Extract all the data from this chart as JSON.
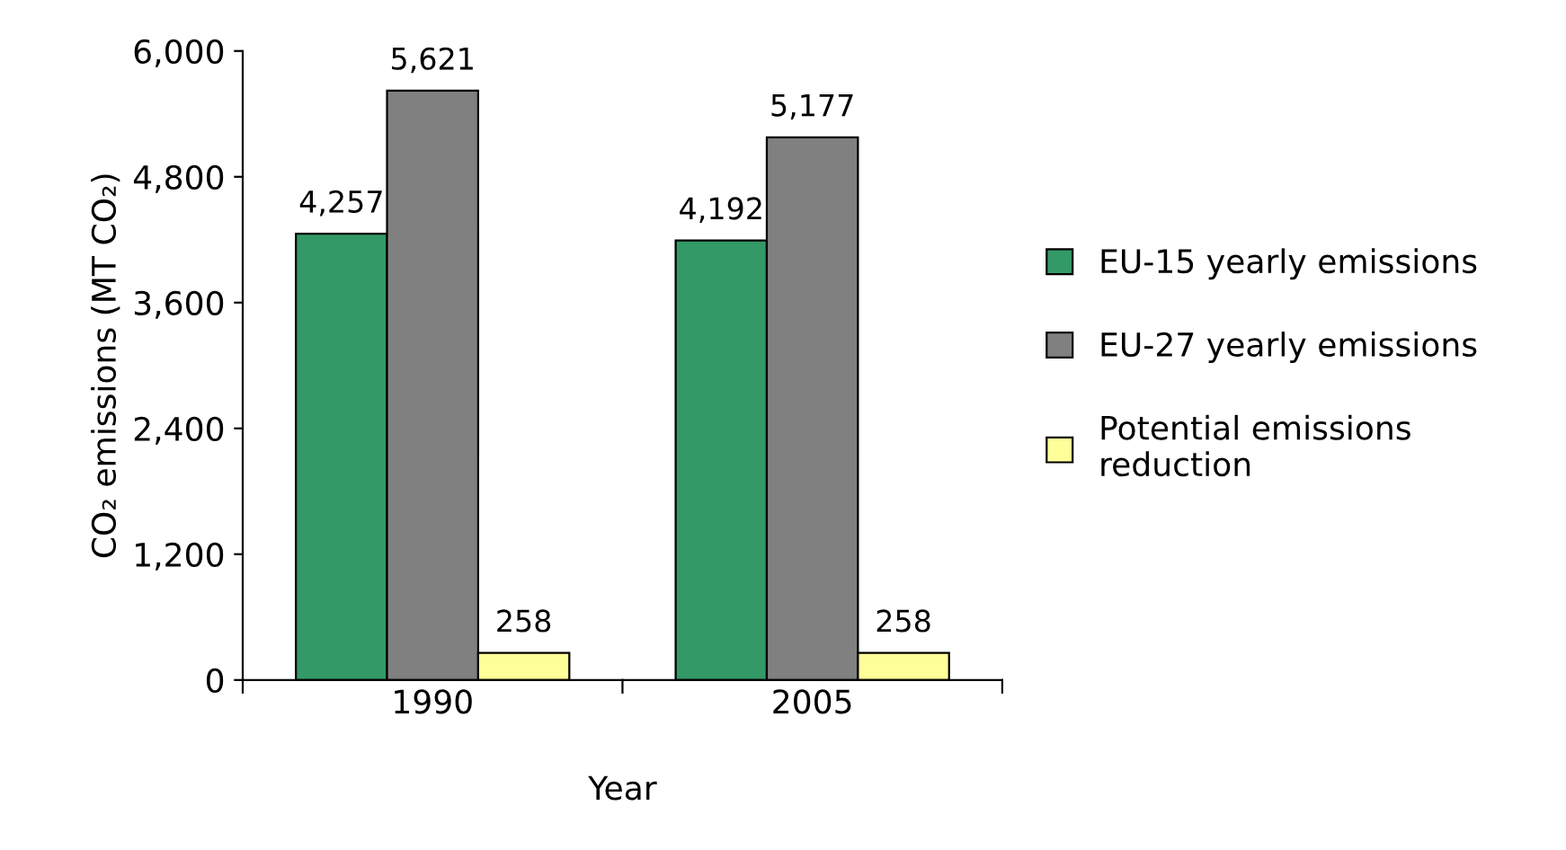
{
  "chart_data": {
    "type": "bar",
    "xlabel": "Year",
    "ylabel": "CO₂ emissions (MT CO₂)",
    "categories": [
      "1990",
      "2005"
    ],
    "series": [
      {
        "name": "EU-15 yearly emissions",
        "color": "#339966",
        "values": [
          4257,
          4192
        ],
        "value_labels": [
          "4,257",
          "4,192"
        ]
      },
      {
        "name": "EU-27 yearly emissions",
        "color": "#808080",
        "values": [
          5621,
          5177
        ],
        "value_labels": [
          "5,621",
          "5,177"
        ]
      },
      {
        "name": "Potential emissions\nreduction",
        "color": "#ffff99",
        "values": [
          258,
          258
        ],
        "value_labels": [
          "258",
          "258"
        ]
      }
    ],
    "ylim": [
      0,
      6000
    ],
    "yticks": [
      0,
      {
        "value": 1200,
        "label": "1,200"
      },
      {
        "value": 2400,
        "label": "2,400"
      },
      {
        "value": 3600,
        "label": "3,600"
      },
      {
        "value": 4800,
        "label": "4,800"
      },
      {
        "value": 6000,
        "label": "6,000"
      }
    ],
    "grid": false,
    "legend": "right"
  }
}
